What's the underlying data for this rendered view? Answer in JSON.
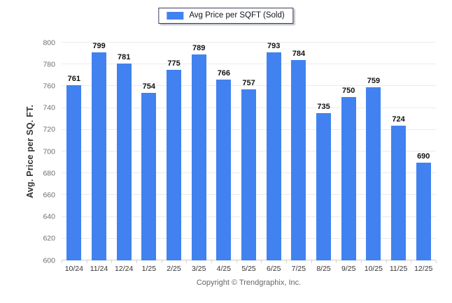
{
  "legend": {
    "label": "Avg Price per SQFT (Sold)",
    "swatch_color": "#4182F0"
  },
  "footer": "Copyright © Trendgraphix, Inc.",
  "chart_data": {
    "type": "bar",
    "title": "Avg Price per SQFT (Sold)",
    "categories": [
      "10/24",
      "11/24",
      "12/24",
      "1/25",
      "2/25",
      "3/25",
      "4/25",
      "5/25",
      "6/25",
      "7/25",
      "8/25",
      "9/25",
      "10/25",
      "11/25",
      "12/25"
    ],
    "values": [
      761,
      799,
      781,
      754,
      775,
      789,
      766,
      757,
      793,
      784,
      735,
      750,
      759,
      724,
      690
    ],
    "xlabel": "",
    "ylabel": "Avg. Price per SQ. FT.",
    "ylim": [
      600,
      800
    ],
    "yticks": [
      600,
      620,
      640,
      660,
      680,
      700,
      720,
      740,
      760,
      780,
      800
    ],
    "bar_color": "#4182F0",
    "grid": true,
    "value_labels": true,
    "legend_position": "top-center"
  }
}
